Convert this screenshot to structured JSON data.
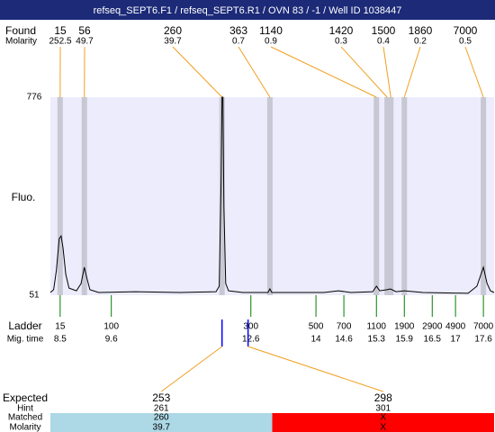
{
  "chart_data": {
    "type": "electropherogram",
    "title": "refseq_SEPT6.F1 / refseq_SEPT6.R1 / OVN 83 / -1 / Well ID 1038447",
    "y_label": "Fluo.",
    "ylim": [
      51,
      776
    ],
    "yticks": [
      51,
      776
    ],
    "xlim": [
      8.29,
      17.83
    ],
    "trace": {
      "color": "#000000",
      "x": [
        8.29,
        8.36,
        8.42,
        8.48,
        8.52,
        8.56,
        8.62,
        8.69,
        8.85,
        8.95,
        9.02,
        9.08,
        9.14,
        9.33,
        10.11,
        11.07,
        11.85,
        11.92,
        11.96,
        11.98,
        12.0,
        12.02,
        12.06,
        12.12,
        12.43,
        12.97,
        13.01,
        13.05,
        14.17,
        14.48,
        14.75,
        15.22,
        15.3,
        15.37,
        15.53,
        15.6,
        15.72,
        15.9,
        16.3,
        17.27,
        17.46,
        17.6,
        17.68,
        17.75,
        17.83
      ],
      "y": [
        61,
        71,
        143,
        258,
        268,
        225,
        127,
        77,
        67,
        94,
        153,
        110,
        71,
        61,
        64,
        61,
        64,
        84,
        473,
        776,
        776,
        374,
        94,
        67,
        61,
        61,
        74,
        61,
        61,
        67,
        61,
        64,
        84,
        67,
        71,
        74,
        64,
        67,
        61,
        58,
        84,
        153,
        94,
        67,
        61
      ]
    },
    "found": {
      "label": "Found",
      "molarity_label": "Molarity",
      "sizes": [
        15,
        56,
        260,
        363,
        1140,
        1420,
        1500,
        1860,
        7000
      ],
      "molarity": [
        252.5,
        49.7,
        39.7,
        0.7,
        0.9,
        0.3,
        0.4,
        0.2,
        0.5
      ],
      "mig_time": [
        8.5,
        9.02,
        11.98,
        13.01,
        15.3,
        15.53,
        15.61,
        15.9,
        17.6
      ]
    },
    "ladder": {
      "label": "Ladder",
      "mig_time_label": "Mig. time",
      "sizes": [
        15,
        100,
        300,
        500,
        700,
        1100,
        1900,
        2900,
        4900,
        7000
      ],
      "mig_time": [
        8.5,
        9.6,
        12.6,
        14,
        14.6,
        15.3,
        15.9,
        16.5,
        17,
        17.6
      ]
    },
    "expected": {
      "label": "Expected",
      "hint_label": "Hint",
      "matched_label": "Matched",
      "molarity_label": "Molarity",
      "sizes": [
        253,
        298
      ],
      "hint": [
        261,
        301
      ],
      "matched": [
        260,
        "X"
      ],
      "molarity": [
        39.7,
        "X"
      ],
      "mig_time": [
        11.98,
        12.54
      ],
      "colors": [
        "#add8e6",
        "#ff0000"
      ]
    }
  }
}
